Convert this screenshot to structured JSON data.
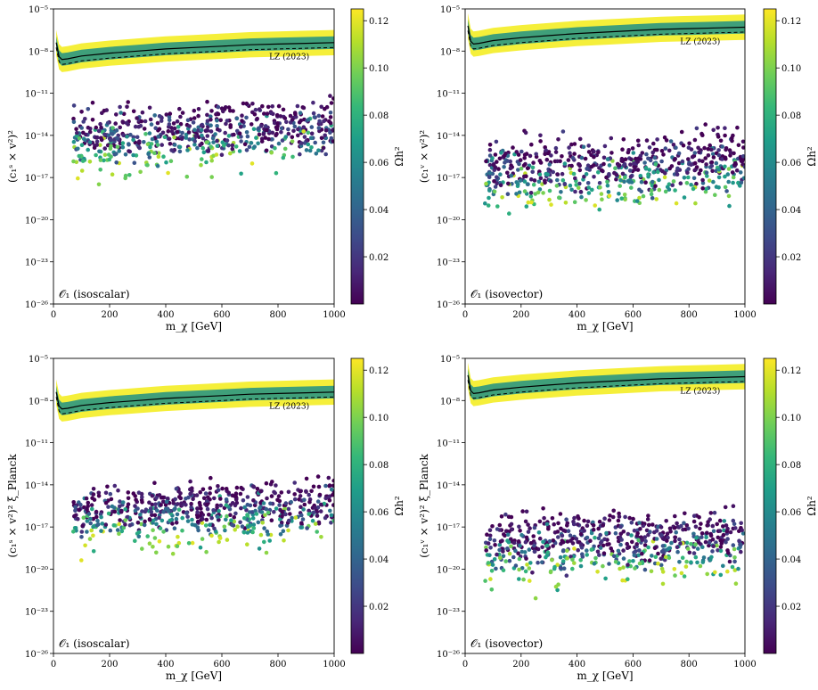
{
  "colors": {
    "band_outer": "#f5ef3a",
    "band_inner": "#3f9f7a",
    "limit_line": "#000000",
    "viridis_stops": [
      "#440154",
      "#482878",
      "#3e4a89",
      "#31688e",
      "#26828e",
      "#1f9e89",
      "#35b779",
      "#6ece58",
      "#b5de2b",
      "#fde725"
    ]
  },
  "chart_data": [
    {
      "id": "top-left",
      "type": "scatter",
      "note": "$\\mathcal{O}_1$ (isoscalar)",
      "note_display": "𝒪₁ (isoscalar)",
      "xlabel": "m_χ [GeV]",
      "ylabel": "(c₁ˢ × v²)²",
      "xlim": [
        0,
        1000
      ],
      "ylim_log10": [
        -26,
        -5
      ],
      "x_ticks": [
        "0",
        "200",
        "400",
        "600",
        "800",
        "1000"
      ],
      "y_ticks": [
        "10⁻²⁶",
        "10⁻²³",
        "10⁻²⁰",
        "10⁻¹⁷",
        "10⁻¹⁴",
        "10⁻¹¹",
        "10⁻⁸",
        "10⁻⁵"
      ],
      "lz_label": "LZ (2023)",
      "lz_limit": {
        "x": [
          10,
          20,
          30,
          50,
          100,
          200,
          300,
          400,
          500,
          600,
          700,
          800,
          900,
          1000
        ],
        "log10_y": [
          -7.4,
          -8.4,
          -8.6,
          -8.55,
          -8.35,
          -8.15,
          -8.0,
          -7.85,
          -7.75,
          -7.65,
          -7.55,
          -7.5,
          -7.45,
          -7.4
        ]
      },
      "points": {
        "x_range": [
          70,
          1000
        ],
        "log10_y_center": -13.6,
        "log10_y_spread": 2.6,
        "count": 620,
        "seed": 11
      },
      "colorbar": {
        "label": "Ωh²",
        "ticks": [
          "0.02",
          "0.04",
          "0.06",
          "0.08",
          "0.10",
          "0.12"
        ],
        "range": [
          0,
          0.125
        ]
      }
    },
    {
      "id": "top-right",
      "type": "scatter",
      "note": "$\\mathcal{O}_1$ (isovector)",
      "note_display": "𝒪₁ (isovector)",
      "xlabel": "m_χ [GeV]",
      "ylabel": "(c₁ᵛ × v²)²",
      "xlim": [
        0,
        1000
      ],
      "ylim_log10": [
        -26,
        -5
      ],
      "x_ticks": [
        "0",
        "200",
        "400",
        "600",
        "800",
        "1000"
      ],
      "y_ticks": [
        "10⁻²⁶",
        "10⁻²³",
        "10⁻²⁰",
        "10⁻¹⁷",
        "10⁻¹⁴",
        "10⁻¹¹",
        "10⁻⁸",
        "10⁻⁵"
      ],
      "lz_label": "LZ (2023)",
      "lz_limit": {
        "x": [
          10,
          20,
          30,
          50,
          100,
          200,
          300,
          400,
          500,
          600,
          700,
          800,
          900,
          1000
        ],
        "log10_y": [
          -6.2,
          -7.3,
          -7.5,
          -7.45,
          -7.25,
          -7.05,
          -6.9,
          -6.75,
          -6.65,
          -6.55,
          -6.45,
          -6.4,
          -6.35,
          -6.3
        ]
      },
      "points": {
        "x_range": [
          70,
          1000
        ],
        "log10_y_center": -16.0,
        "log10_y_spread": 2.7,
        "count": 620,
        "seed": 23
      },
      "colorbar": {
        "label": "Ωh²",
        "ticks": [
          "0.02",
          "0.04",
          "0.06",
          "0.08",
          "0.10",
          "0.12"
        ],
        "range": [
          0,
          0.125
        ]
      }
    },
    {
      "id": "bottom-left",
      "type": "scatter",
      "note": "$\\mathcal{O}_1$ (isoscalar)",
      "note_display": "𝒪₁ (isoscalar)",
      "xlabel": "m_χ [GeV]",
      "ylabel": "(c₁ˢ × v²)² ξ_Planck",
      "xlim": [
        0,
        1000
      ],
      "ylim_log10": [
        -26,
        -5
      ],
      "x_ticks": [
        "0",
        "200",
        "400",
        "600",
        "800",
        "1000"
      ],
      "y_ticks": [
        "10⁻²⁶",
        "10⁻²³",
        "10⁻²⁰",
        "10⁻¹⁷",
        "10⁻¹⁴",
        "10⁻¹¹",
        "10⁻⁸",
        "10⁻⁵"
      ],
      "lz_label": "LZ (2023)",
      "lz_limit": {
        "x": [
          10,
          20,
          30,
          50,
          100,
          200,
          300,
          400,
          500,
          600,
          700,
          800,
          900,
          1000
        ],
        "log10_y": [
          -7.4,
          -8.4,
          -8.6,
          -8.55,
          -8.35,
          -8.15,
          -8.0,
          -7.85,
          -7.75,
          -7.65,
          -7.55,
          -7.5,
          -7.45,
          -7.4
        ]
      },
      "points": {
        "x_range": [
          70,
          1000
        ],
        "log10_y_center": -15.6,
        "log10_y_spread": 2.4,
        "count": 620,
        "seed": 37
      },
      "colorbar": {
        "label": "Ωh²",
        "ticks": [
          "0.02",
          "0.04",
          "0.06",
          "0.08",
          "0.10",
          "0.12"
        ],
        "range": [
          0,
          0.125
        ]
      }
    },
    {
      "id": "bottom-right",
      "type": "scatter",
      "note": "$\\mathcal{O}_1$ (isovector)",
      "note_display": "𝒪₁ (isovector)",
      "xlabel": "m_χ [GeV]",
      "ylabel": "(c₁ᵛ × v²)² ξ_Planck",
      "xlim": [
        0,
        1000
      ],
      "ylim_log10": [
        -26,
        -5
      ],
      "x_ticks": [
        "0",
        "200",
        "400",
        "600",
        "800",
        "1000"
      ],
      "y_ticks": [
        "10⁻²⁶",
        "10⁻²³",
        "10⁻²⁰",
        "10⁻¹⁷",
        "10⁻¹⁴",
        "10⁻¹¹",
        "10⁻⁸",
        "10⁻⁵"
      ],
      "lz_label": "LZ (2023)",
      "lz_limit": {
        "x": [
          10,
          20,
          30,
          50,
          100,
          200,
          300,
          400,
          500,
          600,
          700,
          800,
          900,
          1000
        ],
        "log10_y": [
          -6.2,
          -7.3,
          -7.5,
          -7.45,
          -7.25,
          -7.05,
          -6.9,
          -6.75,
          -6.65,
          -6.55,
          -6.45,
          -6.4,
          -6.35,
          -6.3
        ]
      },
      "points": {
        "x_range": [
          70,
          1000
        ],
        "log10_y_center": -17.9,
        "log10_y_spread": 2.6,
        "count": 620,
        "seed": 53
      },
      "colorbar": {
        "label": "Ωh²",
        "ticks": [
          "0.02",
          "0.04",
          "0.06",
          "0.08",
          "0.10",
          "0.12"
        ],
        "range": [
          0,
          0.125
        ]
      }
    }
  ]
}
